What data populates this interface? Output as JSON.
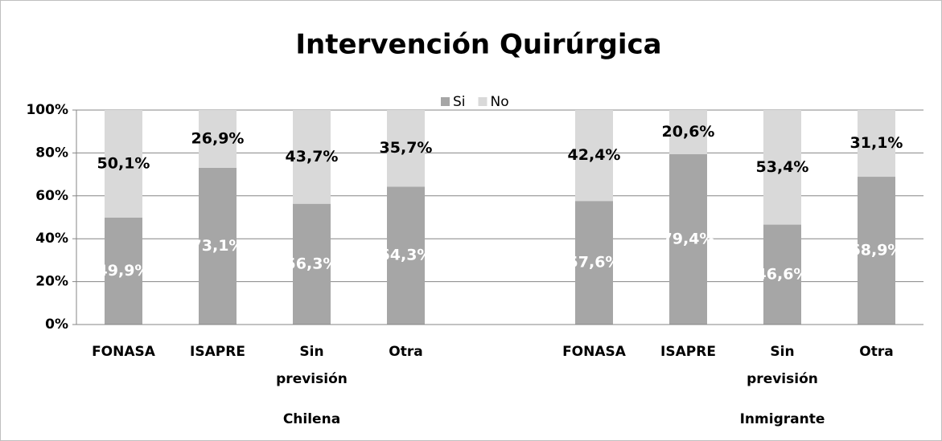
{
  "chart_data": {
    "type": "stacked_bar",
    "title": "Intervención Quirúrgica",
    "categories": [
      "FONASA",
      "ISAPRE",
      "Sin previsión",
      "Otra",
      null,
      "FONASA",
      "ISAPRE",
      "Sin previsión",
      "Otra"
    ],
    "group_labels": [
      "Chilena",
      "Inmigrante"
    ],
    "series": [
      {
        "name": "Si",
        "color": "#a6a6a6",
        "label_color": "#ffffff",
        "values": [
          49.9,
          73.1,
          56.3,
          64.3,
          null,
          57.6,
          79.4,
          46.6,
          68.9
        ],
        "value_labels": [
          "49,9%",
          "73,1%",
          "56,3%",
          "64,3%",
          null,
          "57,6%",
          "79,4%",
          "46,6%",
          "68,9%"
        ]
      },
      {
        "name": "No",
        "color": "#d9d9d9",
        "label_color": "#000000",
        "values": [
          50.1,
          26.9,
          43.7,
          35.7,
          null,
          42.4,
          20.6,
          53.4,
          31.1
        ],
        "value_labels": [
          "50,1%",
          "26,9%",
          "43,7%",
          "35,7%",
          null,
          "42,4%",
          "20,6%",
          "53,4%",
          "31,1%"
        ]
      }
    ],
    "ylim": [
      0,
      100
    ],
    "yticks": [
      {
        "value": 0,
        "label": "0%"
      },
      {
        "value": 20,
        "label": "20%"
      },
      {
        "value": 40,
        "label": "40%"
      },
      {
        "value": 60,
        "label": "60%"
      },
      {
        "value": 80,
        "label": "80%"
      },
      {
        "value": 100,
        "label": "100%"
      }
    ],
    "grid": true,
    "legend": "top"
  }
}
